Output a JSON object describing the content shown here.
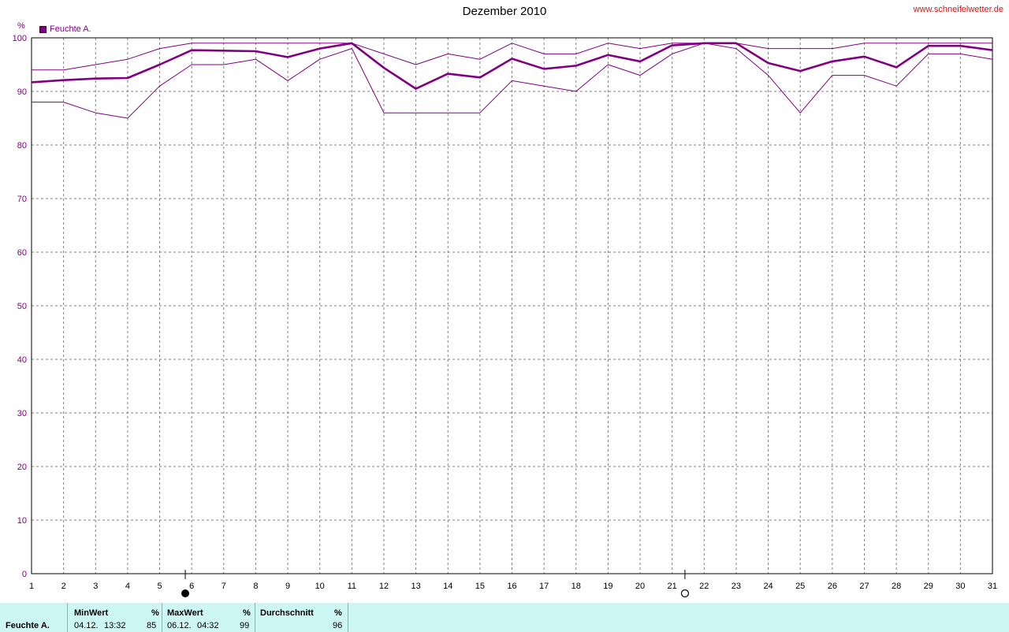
{
  "header": {
    "title": "Dezember 2010",
    "site": "www.schneifelwetter.de",
    "legend_label": "Feuchte A.",
    "unit": "%"
  },
  "colors": {
    "series": "#800080",
    "axis_text": "#800080",
    "grid": "#808080",
    "summary_bg": "#cdf7f5",
    "site": "#ff0000"
  },
  "moon_phases": [
    {
      "day": 5.8,
      "phase": "new-moon"
    },
    {
      "day": 21.4,
      "phase": "full-moon"
    }
  ],
  "chart_data": {
    "type": "line",
    "title": "Dezember 2010",
    "ylabel": "%",
    "xlabel": "",
    "ylim": [
      0,
      100
    ],
    "xlim": [
      1,
      31
    ],
    "y_ticks": [
      0,
      10,
      20,
      30,
      40,
      50,
      60,
      70,
      80,
      90,
      100
    ],
    "x": [
      1,
      2,
      3,
      4,
      5,
      6,
      7,
      8,
      9,
      10,
      11,
      12,
      13,
      14,
      15,
      16,
      17,
      18,
      19,
      20,
      21,
      22,
      23,
      24,
      25,
      26,
      27,
      28,
      29,
      30,
      31
    ],
    "grid": true,
    "legend": "top-left",
    "series": [
      {
        "name": "Feuchte A.",
        "role": "max",
        "values": [
          94,
          94,
          95,
          96,
          98,
          99,
          99,
          99,
          99,
          99,
          99,
          97,
          95,
          97,
          96,
          99,
          97,
          97,
          99,
          98,
          99,
          99,
          99,
          98,
          98,
          98,
          99,
          99,
          99,
          99,
          99
        ]
      },
      {
        "name": "Feuchte A.",
        "role": "average",
        "values": [
          91.7,
          92.1,
          92.4,
          92.5,
          95,
          97.7,
          97.6,
          97.5,
          96.4,
          98,
          99,
          94.4,
          90.5,
          93.3,
          92.6,
          96.1,
          94.2,
          94.8,
          96.8,
          95.6,
          98.6,
          99,
          99,
          95.3,
          93.8,
          95.6,
          96.5,
          94.5,
          98.5,
          98.5,
          97.7
        ]
      },
      {
        "name": "Feuchte A.",
        "role": "min",
        "values": [
          88,
          88,
          86,
          85,
          91,
          95,
          95,
          96,
          92,
          96,
          98,
          86,
          86,
          86,
          86,
          92,
          91,
          90,
          95,
          93,
          97,
          99,
          98,
          93,
          86,
          93,
          93,
          91,
          97,
          97,
          96
        ]
      }
    ]
  },
  "summary": {
    "series_label": "Feuchte A.",
    "min": {
      "header": "MinWert",
      "unit": "%",
      "date": "04.12.",
      "time": "13:32",
      "value": "85"
    },
    "max": {
      "header": "MaxWert",
      "unit": "%",
      "date": "06.12.",
      "time": "04:32",
      "value": "99"
    },
    "avg": {
      "header": "Durchschnitt",
      "unit": "%",
      "value": "96"
    }
  }
}
